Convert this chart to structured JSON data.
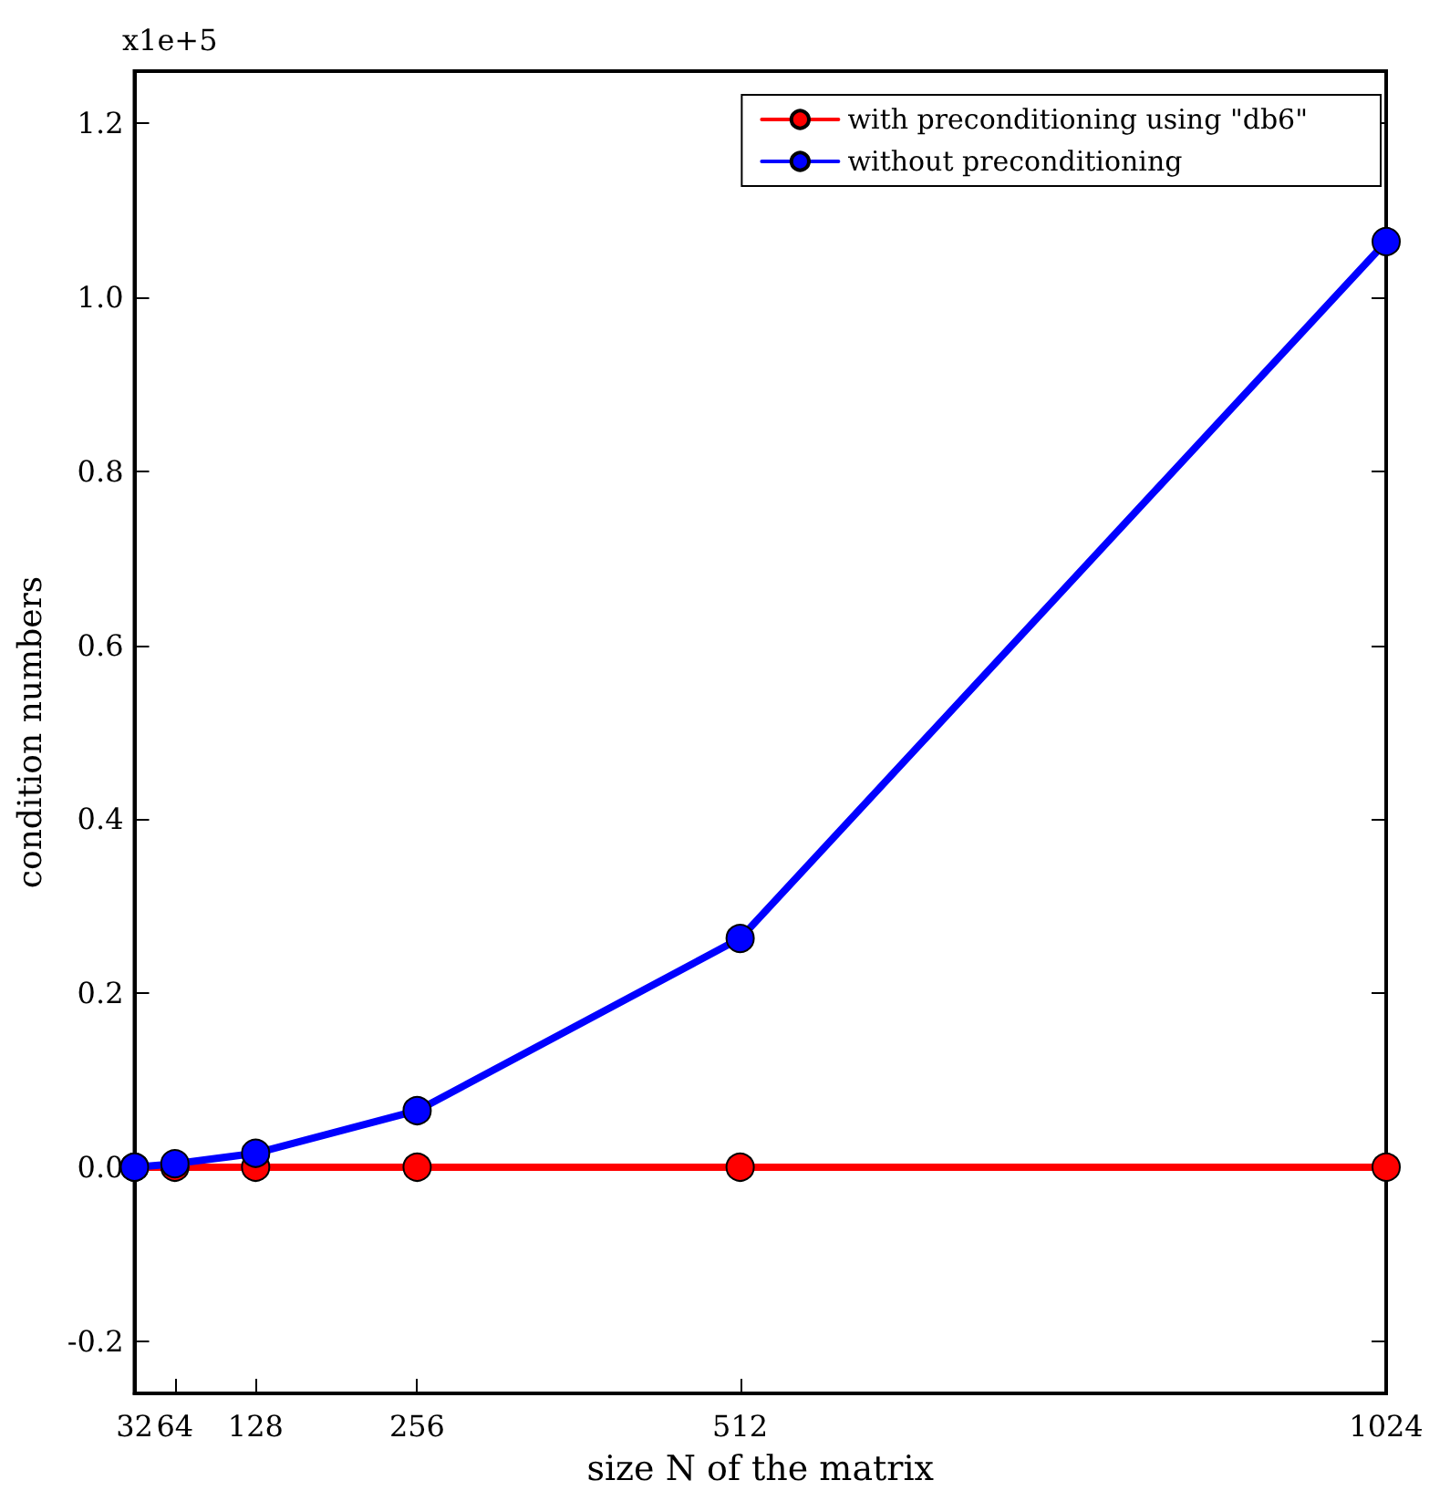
{
  "chart_data": {
    "type": "line",
    "xlabel": "size N of the matrix",
    "ylabel": "condition numbers",
    "annotations": [
      "x1e+5"
    ],
    "x": [
      32,
      64,
      128,
      256,
      512,
      1024
    ],
    "series": [
      {
        "name": "with preconditioning using \"db6\"",
        "color": "#ff0000",
        "values": [
          0,
          0,
          0,
          0,
          0,
          0
        ]
      },
      {
        "name": "without preconditioning",
        "color": "#0000ff",
        "values": [
          0,
          0.004,
          0.016,
          0.065,
          0.263,
          1.064
        ]
      }
    ],
    "xlim": [
      32,
      1024
    ],
    "xticks": [
      32,
      64,
      128,
      256,
      512,
      1024
    ],
    "ylim": [
      -0.26,
      1.26
    ],
    "yticks": [
      {
        "value": -0.2,
        "label": "-0.2"
      },
      {
        "value": 0,
        "label": "0.0"
      },
      {
        "value": 0.2,
        "label": "0.2"
      },
      {
        "value": 0.4,
        "label": "0.4"
      },
      {
        "value": 0.6,
        "label": "0.6"
      },
      {
        "value": 0.8,
        "label": "0.8"
      },
      {
        "value": 1.0,
        "label": "1.0"
      },
      {
        "value": 1.2,
        "label": "1.2"
      }
    ],
    "grid": false,
    "legend": "top right",
    "marker": "circle",
    "line_style": "solid"
  }
}
